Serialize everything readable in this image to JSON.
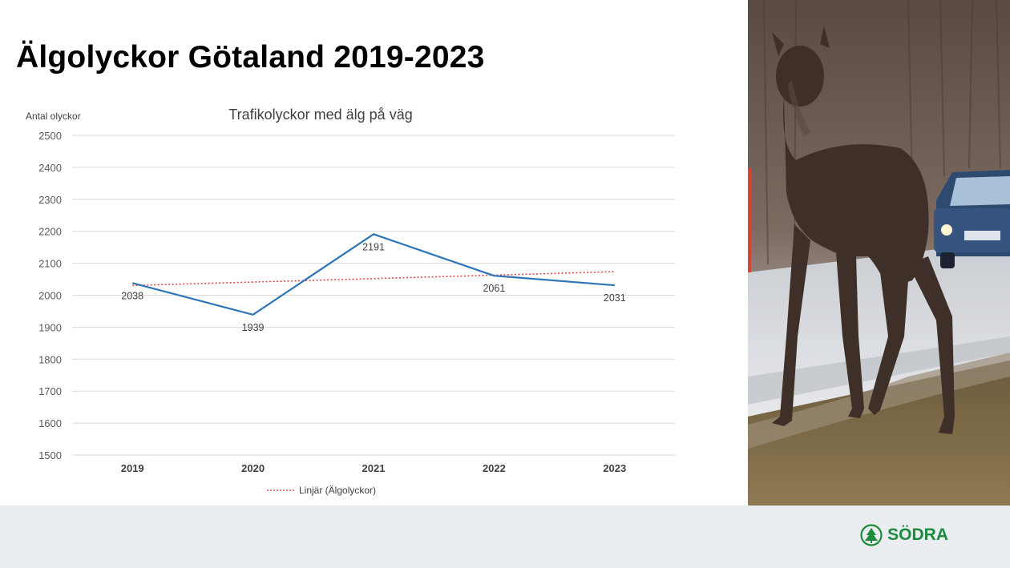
{
  "slide": {
    "title": "Älgolyckor Götaland 2019-2023"
  },
  "chart_data": {
    "type": "line",
    "title": "Trafikolyckor med älg på väg",
    "ylabel": "Antal olyckor",
    "xlabel": "",
    "categories": [
      "2019",
      "2020",
      "2021",
      "2022",
      "2023"
    ],
    "series": [
      {
        "name": "Älgolyckor",
        "values": [
          2038,
          1939,
          2191,
          2061,
          2031
        ],
        "color": "#2e75b6",
        "data_labels": [
          "2038",
          "1939",
          "2191",
          "2061",
          "2031"
        ]
      }
    ],
    "trendline": {
      "name": "Linjär (Älgolyckor)",
      "type": "linear",
      "color": "#e0484b",
      "style": "dotted"
    },
    "ylim": [
      1500,
      2500
    ],
    "yticks": [
      1500,
      1600,
      1700,
      1800,
      1900,
      2000,
      2100,
      2200,
      2300,
      2400,
      2500
    ],
    "grid": true,
    "legend": "bottom"
  },
  "photo": {
    "subject": "moose-photo"
  },
  "footer": {
    "logo_text": "SÖDRA",
    "brand_color": "#1e8a3e"
  }
}
